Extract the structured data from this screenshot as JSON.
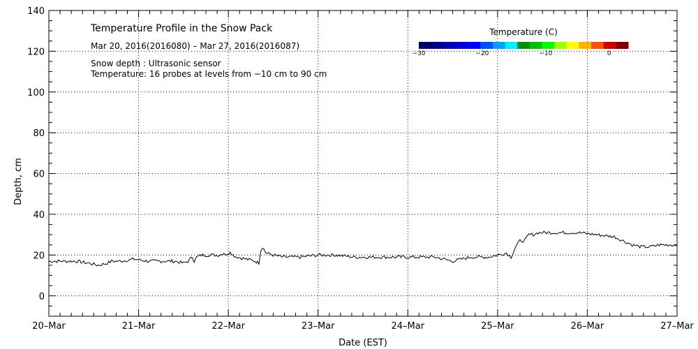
{
  "chart_data": {
    "type": "line",
    "title": "Temperature Profile in the Snow Pack",
    "subtitle": "Mar 20, 2016(2016080) – Mar 27, 2016(2016087)",
    "notes": [
      "Snow depth : Ultrasonic sensor",
      "Temperature: 16 probes at levels from −10 cm to 90 cm"
    ],
    "xlabel": "Date (EST)",
    "ylabel": "Depth, cm",
    "x_ticks": [
      "20–Mar",
      "21–Mar",
      "22–Mar",
      "23–Mar",
      "24–Mar",
      "25–Mar",
      "26–Mar",
      "27–Mar"
    ],
    "y_ticks": [
      "0",
      "20",
      "40",
      "60",
      "80",
      "100",
      "120",
      "140"
    ],
    "xlim": [
      0,
      7
    ],
    "ylim": [
      -10,
      140
    ],
    "grid": true,
    "x_unit": "days since 20-Mar 00:00 EST",
    "series": [
      {
        "name": "Snow depth",
        "color": "#000000",
        "x": [
          0.0,
          0.15,
          0.3,
          0.45,
          0.55,
          0.65,
          0.7,
          0.8,
          0.95,
          1.1,
          1.25,
          1.4,
          1.5,
          1.55,
          1.6,
          1.62,
          1.65,
          1.7,
          1.8,
          1.9,
          1.95,
          2.0,
          2.02,
          2.05,
          2.1,
          2.2,
          2.3,
          2.34,
          2.36,
          2.38,
          2.42,
          2.5,
          2.6,
          2.8,
          3.0,
          3.2,
          3.4,
          3.6,
          3.8,
          4.0,
          4.2,
          4.3,
          4.4,
          4.5,
          4.6,
          4.7,
          4.8,
          4.9,
          5.0,
          5.1,
          5.15,
          5.2,
          5.25,
          5.3,
          5.35,
          5.4,
          5.45,
          5.5,
          5.7,
          5.9,
          6.1,
          6.3,
          6.4,
          6.5,
          6.6,
          6.7,
          6.8,
          6.9,
          7.0
        ],
        "y": [
          17,
          17,
          17,
          16,
          15,
          16,
          17,
          17,
          18,
          17,
          17,
          17,
          16,
          17,
          19,
          17,
          19,
          20,
          20,
          20,
          21,
          20,
          22,
          20,
          19,
          18,
          17,
          16,
          22,
          24,
          21,
          20,
          19,
          19,
          20,
          20,
          19,
          19,
          19,
          19,
          19,
          19,
          18,
          17,
          18,
          19,
          19,
          19,
          20,
          21,
          19,
          24,
          27,
          27,
          30,
          30,
          31,
          31,
          31,
          31,
          30,
          29,
          27,
          25,
          24,
          24,
          25,
          25,
          25
        ]
      }
    ],
    "colorbar": {
      "title": "Temperature (C)",
      "tick_labels": [
        "−30",
        "−20",
        "−10",
        "0"
      ],
      "range": [
        -30,
        3
      ],
      "colors": [
        "#00006a",
        "#00008c",
        "#0000b4",
        "#0000dc",
        "#0000ff",
        "#0050ff",
        "#00a0ff",
        "#00f0ff",
        "#009000",
        "#00c000",
        "#00ff00",
        "#a0ff00",
        "#ffff00",
        "#ffb000",
        "#ff5000",
        "#d00000",
        "#800000"
      ]
    }
  }
}
